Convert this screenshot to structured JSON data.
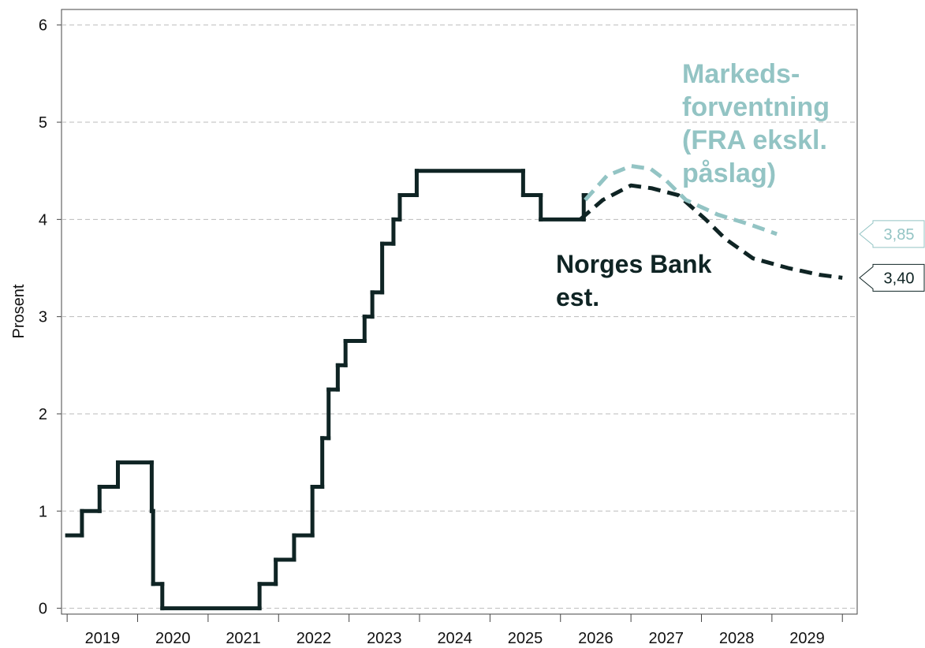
{
  "chart_data": {
    "type": "line",
    "y_label": "Prosent",
    "xlim": [
      2018.92,
      2030.21
    ],
    "ylim": [
      -0.06,
      6.16
    ],
    "yticks": [
      0,
      1,
      2,
      3,
      4,
      5,
      6
    ],
    "xticks": [
      2019,
      2020,
      2021,
      2022,
      2023,
      2024,
      2025,
      2026,
      2027,
      2028,
      2029,
      2030
    ],
    "xtick_labels": [
      {
        "value": 2019.5,
        "label": "2019"
      },
      {
        "value": 2020.5,
        "label": "2020"
      },
      {
        "value": 2021.5,
        "label": "2021"
      },
      {
        "value": 2022.5,
        "label": "2022"
      },
      {
        "value": 2023.5,
        "label": "2023"
      },
      {
        "value": 2024.5,
        "label": "2024"
      },
      {
        "value": 2025.5,
        "label": "2025"
      },
      {
        "value": 2026.5,
        "label": "2026"
      },
      {
        "value": 2027.5,
        "label": "2027"
      },
      {
        "value": 2028.5,
        "label": "2028"
      },
      {
        "value": 2029.5,
        "label": "2029"
      }
    ],
    "grid": true,
    "series": [
      {
        "color": "#0f2424",
        "style": "step",
        "x": [
          2019.0,
          2019.21,
          2019.46,
          2019.72,
          2020.2,
          2020.22,
          2020.35,
          2021.73,
          2021.96,
          2022.22,
          2022.48,
          2022.62,
          2022.71,
          2022.84,
          2022.95,
          2023.22,
          2023.33,
          2023.47,
          2023.63,
          2023.72,
          2023.96,
          2025.47,
          2025.72,
          2026.33,
          2026.36
        ],
        "values": [
          0.75,
          1,
          1.25,
          1.5,
          1.0,
          0.25,
          0,
          0.25,
          0.5,
          0.75,
          1.25,
          1.75,
          2.25,
          2.5,
          2.75,
          3,
          3.25,
          3.75,
          4,
          4.25,
          4.5,
          4.25,
          4,
          4.25,
          4.25
        ]
      },
      {
        "color": "#0f2424",
        "style": "dashed",
        "x": [
          2026.28,
          2026.6,
          2027.0,
          2027.3,
          2027.67,
          2028.06,
          2028.34,
          2028.73,
          2029.23,
          2029.68,
          2030.0
        ],
        "values": [
          4.0,
          4.2,
          4.35,
          4.32,
          4.25,
          4.0,
          3.8,
          3.6,
          3.5,
          3.43,
          3.4
        ],
        "end_label": "3,40"
      },
      {
        "color": "#93c4c4",
        "style": "dashed",
        "x": [
          2026.35,
          2026.66,
          2027.0,
          2027.28,
          2027.5,
          2027.78,
          2028.23,
          2028.68,
          2029.07
        ],
        "values": [
          4.2,
          4.45,
          4.55,
          4.52,
          4.4,
          4.2,
          4.05,
          3.95,
          3.85
        ],
        "end_label": "3,85"
      }
    ],
    "annotations": [
      {
        "lines": [
          "Markeds-",
          "forventning",
          "(FRA ekskl.",
          "påslag)"
        ],
        "color": "#93c4c4"
      },
      {
        "lines": [
          "Norges Bank",
          "est."
        ],
        "color": "#0f2424"
      }
    ]
  }
}
